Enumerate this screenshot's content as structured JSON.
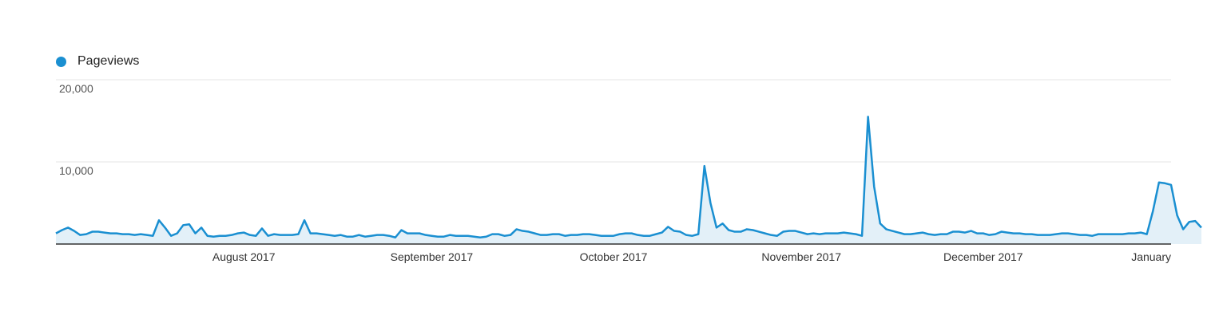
{
  "colors": {
    "line": "#1a8fd1",
    "fill": "#e3f0f8",
    "grid": "#e6e6e6",
    "axis": "#333333"
  },
  "legend": {
    "label": "Pageviews"
  },
  "chart_data": {
    "type": "area",
    "title": "",
    "xlabel": "",
    "ylabel": "",
    "ylim": [
      0,
      20000
    ],
    "y_ticks": [
      {
        "label": "20,000",
        "value": 20000
      },
      {
        "label": "10,000",
        "value": 10000
      }
    ],
    "x_ticks": [
      {
        "label": "August 2017",
        "date": "2017-08-01"
      },
      {
        "label": "September 2017",
        "date": "2017-09-01"
      },
      {
        "label": "October 2017",
        "date": "2017-10-01"
      },
      {
        "label": "November 2017",
        "date": "2017-11-01"
      },
      {
        "label": "December 2017",
        "date": "2017-12-01"
      },
      {
        "label": "January",
        "date": "2018-01-01"
      }
    ],
    "x_range": [
      "2017-07-01",
      "2018-01-01"
    ],
    "grid": true,
    "legend_position": "top-left",
    "series": [
      {
        "name": "Pageviews",
        "start_date": "2017-07-01",
        "interval": "day",
        "values": [
          1300,
          1700,
          2000,
          1600,
          1100,
          1200,
          1500,
          1500,
          1400,
          1300,
          1300,
          1200,
          1200,
          1100,
          1200,
          1100,
          1000,
          2900,
          2000,
          1000,
          1300,
          2300,
          2400,
          1300,
          2000,
          1000,
          900,
          1000,
          1000,
          1100,
          1300,
          1400,
          1100,
          1000,
          1900,
          1000,
          1200,
          1100,
          1100,
          1100,
          1200,
          2900,
          1300,
          1300,
          1200,
          1100,
          1000,
          1100,
          900,
          900,
          1100,
          900,
          1000,
          1100,
          1100,
          1000,
          800,
          1700,
          1300,
          1300,
          1300,
          1100,
          1000,
          900,
          900,
          1100,
          1000,
          1000,
          1000,
          900,
          800,
          900,
          1200,
          1200,
          1000,
          1100,
          1800,
          1600,
          1500,
          1300,
          1100,
          1100,
          1200,
          1200,
          1000,
          1100,
          1100,
          1200,
          1200,
          1100,
          1000,
          1000,
          1000,
          1200,
          1300,
          1300,
          1100,
          1000,
          1000,
          1200,
          1400,
          2100,
          1600,
          1500,
          1100,
          1000,
          1200,
          9500,
          5000,
          2000,
          2500,
          1700,
          1500,
          1500,
          1800,
          1700,
          1500,
          1300,
          1100,
          1000,
          1500,
          1600,
          1600,
          1400,
          1200,
          1300,
          1200,
          1300,
          1300,
          1300,
          1400,
          1300,
          1200,
          1000,
          15500,
          7000,
          2500,
          1800,
          1600,
          1400,
          1200,
          1200,
          1300,
          1400,
          1200,
          1100,
          1200,
          1200,
          1500,
          1500,
          1400,
          1600,
          1300,
          1300,
          1100,
          1200,
          1500,
          1400,
          1300,
          1300,
          1200,
          1200,
          1100,
          1100,
          1100,
          1200,
          1300,
          1300,
          1200,
          1100,
          1100,
          1000,
          1200,
          1200,
          1200,
          1200,
          1200,
          1300,
          1300,
          1400,
          1200,
          4000,
          7500,
          7400,
          7200,
          3500,
          1800,
          2700,
          2800,
          2000
        ]
      }
    ]
  }
}
